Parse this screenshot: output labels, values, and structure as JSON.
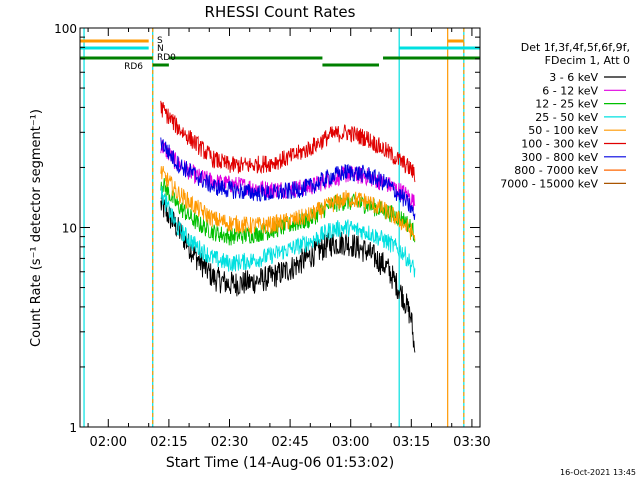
{
  "chart_data": {
    "type": "line",
    "title": "RHESSI Count Rates",
    "xlabel": "Start Time (14-Aug-06 01:53:02)",
    "ylabel": "Count Rate (s⁻¹ detector segment⁻¹)",
    "y_scale": "log",
    "ylim": [
      1,
      100
    ],
    "xlim": [
      "01:53",
      "03:32"
    ],
    "x_ticks": [
      "02:00",
      "02:15",
      "02:30",
      "02:45",
      "03:00",
      "03:15",
      "03:30"
    ],
    "y_ticks": [
      "1",
      "10",
      "100"
    ],
    "timestamp": "16-Oct-2021 13:45",
    "legend": {
      "placement": "right",
      "header": [
        "Det 1f,3f,4f,5f,6f,9f,",
        "FDecim 1, Att 0"
      ]
    },
    "series": [
      {
        "name": "3 - 6 keV",
        "color": "#000000",
        "x": [
          "02:13",
          "02:17",
          "02:22",
          "02:26",
          "02:30",
          "02:35",
          "02:40",
          "02:45",
          "02:50",
          "02:55",
          "02:59",
          "03:04",
          "03:09",
          "03:13",
          "03:15",
          "03:16"
        ],
        "y": [
          13,
          10,
          7,
          5.6,
          5.2,
          5.3,
          5.6,
          6.2,
          7.2,
          8.3,
          8.4,
          7.6,
          6.3,
          4.5,
          3.5,
          2.2
        ]
      },
      {
        "name": "6 - 12 keV",
        "color": "#e000e0",
        "x": [
          "02:13",
          "02:17",
          "02:22",
          "02:26",
          "02:30",
          "02:35",
          "02:40",
          "02:45",
          "02:50",
          "02:55",
          "02:59",
          "03:04",
          "03:09",
          "03:13",
          "03:15",
          "03:16"
        ],
        "y": [
          26,
          21,
          18,
          17,
          16.5,
          16,
          15.5,
          15.6,
          16,
          17.5,
          18.5,
          18,
          16.5,
          15,
          14,
          13
        ]
      },
      {
        "name": "12 - 25 keV",
        "color": "#00c000",
        "x": [
          "02:13",
          "02:17",
          "02:22",
          "02:26",
          "02:30",
          "02:35",
          "02:40",
          "02:45",
          "02:50",
          "02:55",
          "02:59",
          "03:04",
          "03:09",
          "03:13",
          "03:15",
          "03:16"
        ],
        "y": [
          17,
          13,
          10.5,
          9.5,
          9,
          9.2,
          9.6,
          10.3,
          11,
          13,
          13.5,
          13,
          12,
          11,
          10,
          9
        ]
      },
      {
        "name": "25 - 50 keV",
        "color": "#00e0e0",
        "x": [
          "02:13",
          "02:17",
          "02:22",
          "02:26",
          "02:30",
          "02:35",
          "02:40",
          "02:45",
          "02:50",
          "02:55",
          "02:59",
          "03:04",
          "03:09",
          "03:13",
          "03:15",
          "03:16"
        ],
        "y": [
          15,
          10,
          8,
          7,
          6.6,
          6.8,
          7.2,
          7.8,
          8.5,
          9.7,
          10,
          9.5,
          8.5,
          7.5,
          6.5,
          6
        ]
      },
      {
        "name": "50 - 100 keV",
        "color": "#ff9900",
        "x": [
          "02:13",
          "02:17",
          "02:22",
          "02:26",
          "02:30",
          "02:35",
          "02:40",
          "02:45",
          "02:50",
          "02:55",
          "02:59",
          "03:04",
          "03:09",
          "03:13",
          "03:15",
          "03:16"
        ],
        "y": [
          19,
          15,
          12.5,
          11,
          10.5,
          10.2,
          10.3,
          10.8,
          11.5,
          13,
          14,
          13.5,
          12,
          10.5,
          9.5,
          9
        ]
      },
      {
        "name": "100 - 300 keV",
        "color": "#e00000",
        "x": [
          "02:13",
          "02:17",
          "02:22",
          "02:26",
          "02:30",
          "02:35",
          "02:40",
          "02:45",
          "02:50",
          "02:55",
          "02:59",
          "03:04",
          "03:09",
          "03:13",
          "03:15",
          "03:16"
        ],
        "y": [
          40,
          32,
          26,
          22,
          20.5,
          20.5,
          21,
          22.5,
          25,
          29,
          30,
          28,
          24,
          21,
          19.5,
          18
        ]
      },
      {
        "name": "300 - 800 keV",
        "color": "#0000e0",
        "x": [
          "02:13",
          "02:17",
          "02:22",
          "02:26",
          "02:30",
          "02:35",
          "02:40",
          "02:45",
          "02:50",
          "02:55",
          "02:59",
          "03:04",
          "03:09",
          "03:13",
          "03:15",
          "03:16"
        ],
        "y": [
          27,
          21,
          18,
          16,
          15.5,
          15,
          14.8,
          15.2,
          16,
          18,
          19,
          18.5,
          16.5,
          14,
          12.5,
          11
        ]
      },
      {
        "name": "800 - 7000 keV",
        "color": "#ff6600",
        "x": [],
        "y": []
      },
      {
        "name": "7000 - 15000 keV",
        "color": "#aa5500",
        "x": [],
        "y": []
      }
    ],
    "flags": [
      {
        "label": "S",
        "color": "#ff9900",
        "segments": [
          [
            "01:53",
            "02:10"
          ],
          [
            "03:24",
            "03:28"
          ]
        ]
      },
      {
        "label": "N",
        "color": "#00e0e0",
        "segments": [
          [
            "01:53",
            "02:10"
          ],
          [
            "03:12",
            "03:32"
          ]
        ]
      },
      {
        "label": "RD0",
        "color": "#008000",
        "segments": [
          [
            "01:53",
            "02:11"
          ],
          [
            "02:15",
            "02:53"
          ],
          [
            "03:08",
            "03:32"
          ]
        ]
      },
      {
        "label": "RD6",
        "color": "#008000",
        "segments": [
          [
            "02:11",
            "02:15"
          ],
          [
            "02:53",
            "03:07"
          ]
        ]
      }
    ],
    "markers": [
      {
        "time": "01:54",
        "color": "#00e0e0",
        "style": "solid"
      },
      {
        "time": "02:11",
        "color": "#00e0e0",
        "style": "solid"
      },
      {
        "time": "02:11",
        "color": "#ff9900",
        "style": "dashed"
      },
      {
        "time": "03:12",
        "color": "#00e0e0",
        "style": "solid"
      },
      {
        "time": "03:24",
        "color": "#ff9900",
        "style": "solid"
      },
      {
        "time": "03:28",
        "color": "#00e0e0",
        "style": "solid"
      },
      {
        "time": "03:28",
        "color": "#ff9900",
        "style": "dashed"
      }
    ]
  }
}
